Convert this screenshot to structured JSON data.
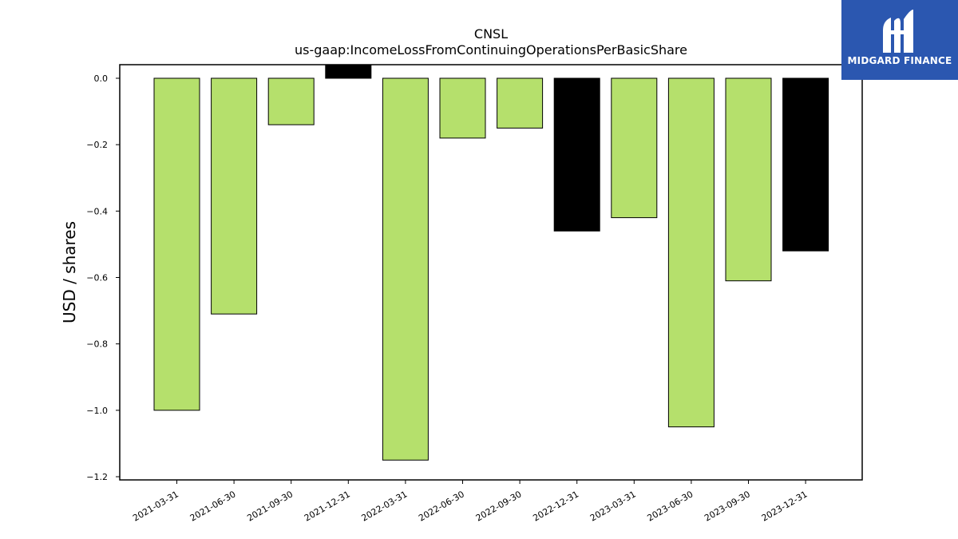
{
  "chart_data": {
    "type": "bar",
    "title": "CNSL",
    "subtitle": "us-gaap:IncomeLossFromContinuingOperationsPerBasicShare",
    "xlabel": "",
    "ylabel": "USD / shares",
    "ylim": [
      -1.21,
      0.04
    ],
    "yticks": [
      0.0,
      -0.2,
      -0.4,
      -0.6,
      -0.8,
      -1.0,
      -1.2
    ],
    "ytick_labels": [
      "0.0",
      "−0.2",
      "−0.4",
      "−0.6",
      "−0.8",
      "−1.0",
      "−1.2"
    ],
    "categories": [
      "2021-03-31",
      "2021-06-30",
      "2021-09-30",
      "2021-12-31",
      "2022-03-31",
      "2022-06-30",
      "2022-09-30",
      "2022-12-31",
      "2023-03-31",
      "2023-06-30",
      "2023-09-30",
      "2023-12-31"
    ],
    "values": [
      -1.0,
      -0.71,
      -0.14,
      0.04,
      -1.15,
      -0.18,
      -0.15,
      -0.46,
      -0.42,
      -1.05,
      -0.61,
      -0.52
    ],
    "bar_colors": [
      "#b5e06c",
      "#b5e06c",
      "#b5e06c",
      "#000000",
      "#b5e06c",
      "#b5e06c",
      "#b5e06c",
      "#000000",
      "#b5e06c",
      "#b5e06c",
      "#b5e06c",
      "#000000"
    ],
    "grid": false
  },
  "logo": {
    "text": "MIDGARD FINANCE",
    "icon": "midgard-logo-icon",
    "background": "#2b57b0"
  }
}
